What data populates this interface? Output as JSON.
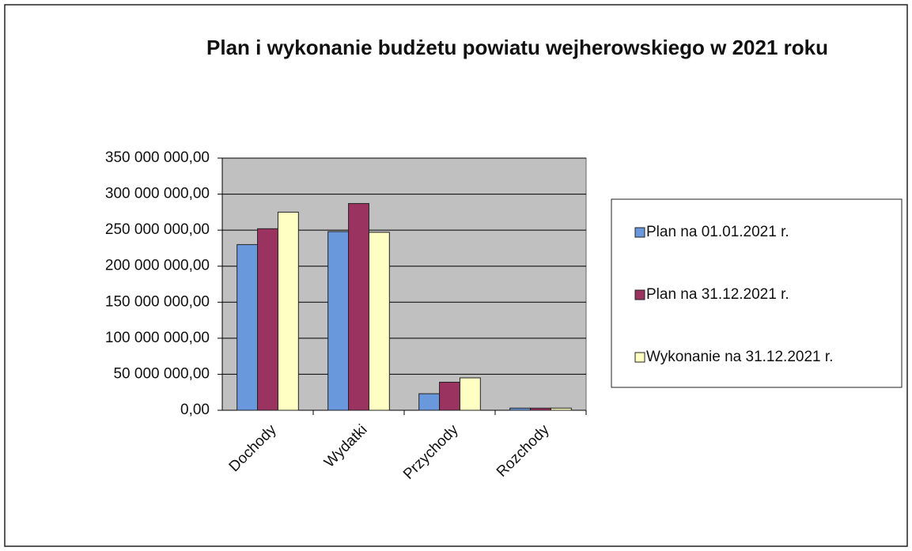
{
  "chart_data": {
    "type": "bar",
    "title": "Plan i wykonanie budżetu powiatu wejherowskiego w 2021 roku",
    "categories": [
      "Dochody",
      "Wydatki",
      "Przychody",
      "Rozchody"
    ],
    "series": [
      {
        "name": "Plan na 01.01.2021 r.",
        "color": "#6a98dc",
        "values": [
          230000000,
          248000000,
          23000000,
          3000000
        ]
      },
      {
        "name": "Plan na 31.12.2021 r.",
        "color": "#9b3360",
        "values": [
          252000000,
          287000000,
          39000000,
          3000000
        ]
      },
      {
        "name": "Wykonanie na 31.12.2021 r.",
        "color": "#ffffc4",
        "values": [
          275000000,
          247000000,
          45000000,
          3000000
        ]
      }
    ],
    "ylim": [
      0,
      350000000
    ],
    "yticks": [
      {
        "value": 0,
        "label": "0,00"
      },
      {
        "value": 50000000,
        "label": "50 000 000,00"
      },
      {
        "value": 100000000,
        "label": "100 000 000,00"
      },
      {
        "value": 150000000,
        "label": "150 000 000,00"
      },
      {
        "value": 200000000,
        "label": "200 000 000,00"
      },
      {
        "value": 250000000,
        "label": "250 000 000,00"
      },
      {
        "value": 300000000,
        "label": "300 000 000,00"
      },
      {
        "value": 350000000,
        "label": "350 000 000,00"
      }
    ],
    "grid": true,
    "legend": "right"
  }
}
